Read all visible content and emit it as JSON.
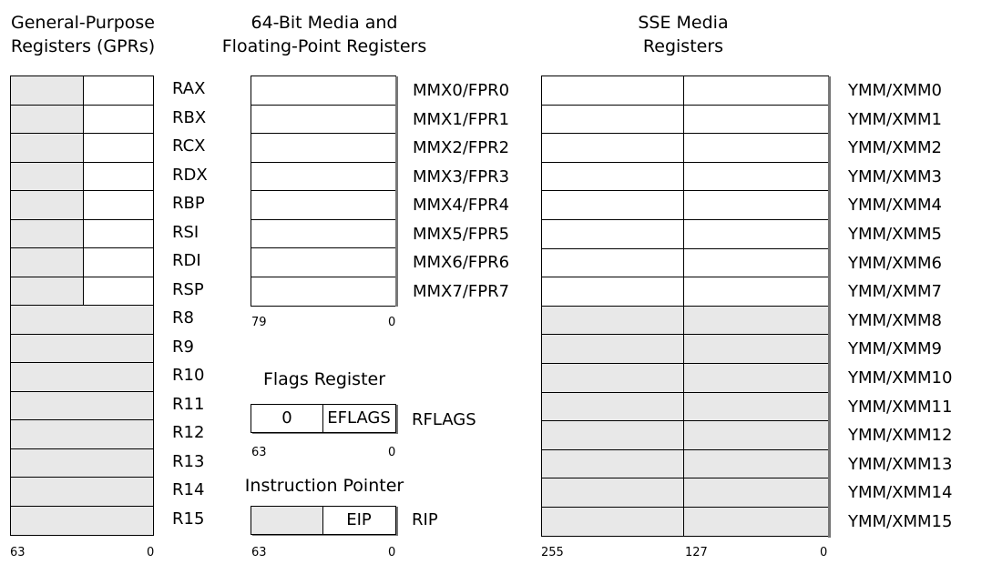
{
  "gpr": {
    "title_line1": "General-Purpose",
    "title_line2": "Registers (GPRs)",
    "registers": [
      "RAX",
      "RBX",
      "RCX",
      "RDX",
      "RBP",
      "RSI",
      "RDI",
      "RSP",
      "R8",
      "R9",
      "R10",
      "R11",
      "R12",
      "R13",
      "R14",
      "R15"
    ],
    "split_count": 8,
    "bit_high": "63",
    "bit_low": "0"
  },
  "mmx": {
    "title_line1": "64-Bit Media and",
    "title_line2": "Floating-Point Registers",
    "registers": [
      "MMX0/FPR0",
      "MMX1/FPR1",
      "MMX2/FPR2",
      "MMX3/FPR3",
      "MMX4/FPR4",
      "MMX5/FPR5",
      "MMX6/FPR6",
      "MMX7/FPR7"
    ],
    "bit_high": "79",
    "bit_low": "0"
  },
  "flags": {
    "title": "Flags Register",
    "left_value": "0",
    "right_value": "EFLAGS",
    "name": "RFLAGS",
    "bit_high": "63",
    "bit_low": "0"
  },
  "ip": {
    "title": "Instruction Pointer",
    "right_value": "EIP",
    "name": "RIP",
    "bit_high": "63",
    "bit_low": "0"
  },
  "sse": {
    "title_line1": "SSE Media",
    "title_line2": "Registers",
    "registers": [
      "YMM/XMM0",
      "YMM/XMM1",
      "YMM/XMM2",
      "YMM/XMM3",
      "YMM/XMM4",
      "YMM/XMM5",
      "YMM/XMM6",
      "YMM/XMM7",
      "YMM/XMM8",
      "YMM/XMM9",
      "YMM/XMM10",
      "YMM/XMM11",
      "YMM/XMM12",
      "YMM/XMM13",
      "YMM/XMM14",
      "YMM/XMM15"
    ],
    "white_count": 8,
    "bit_high": "255",
    "bit_mid": "127",
    "bit_low": "0"
  },
  "colors": {
    "shade": "#e8e8e8",
    "line": "#000000",
    "shadow": "#777777"
  }
}
